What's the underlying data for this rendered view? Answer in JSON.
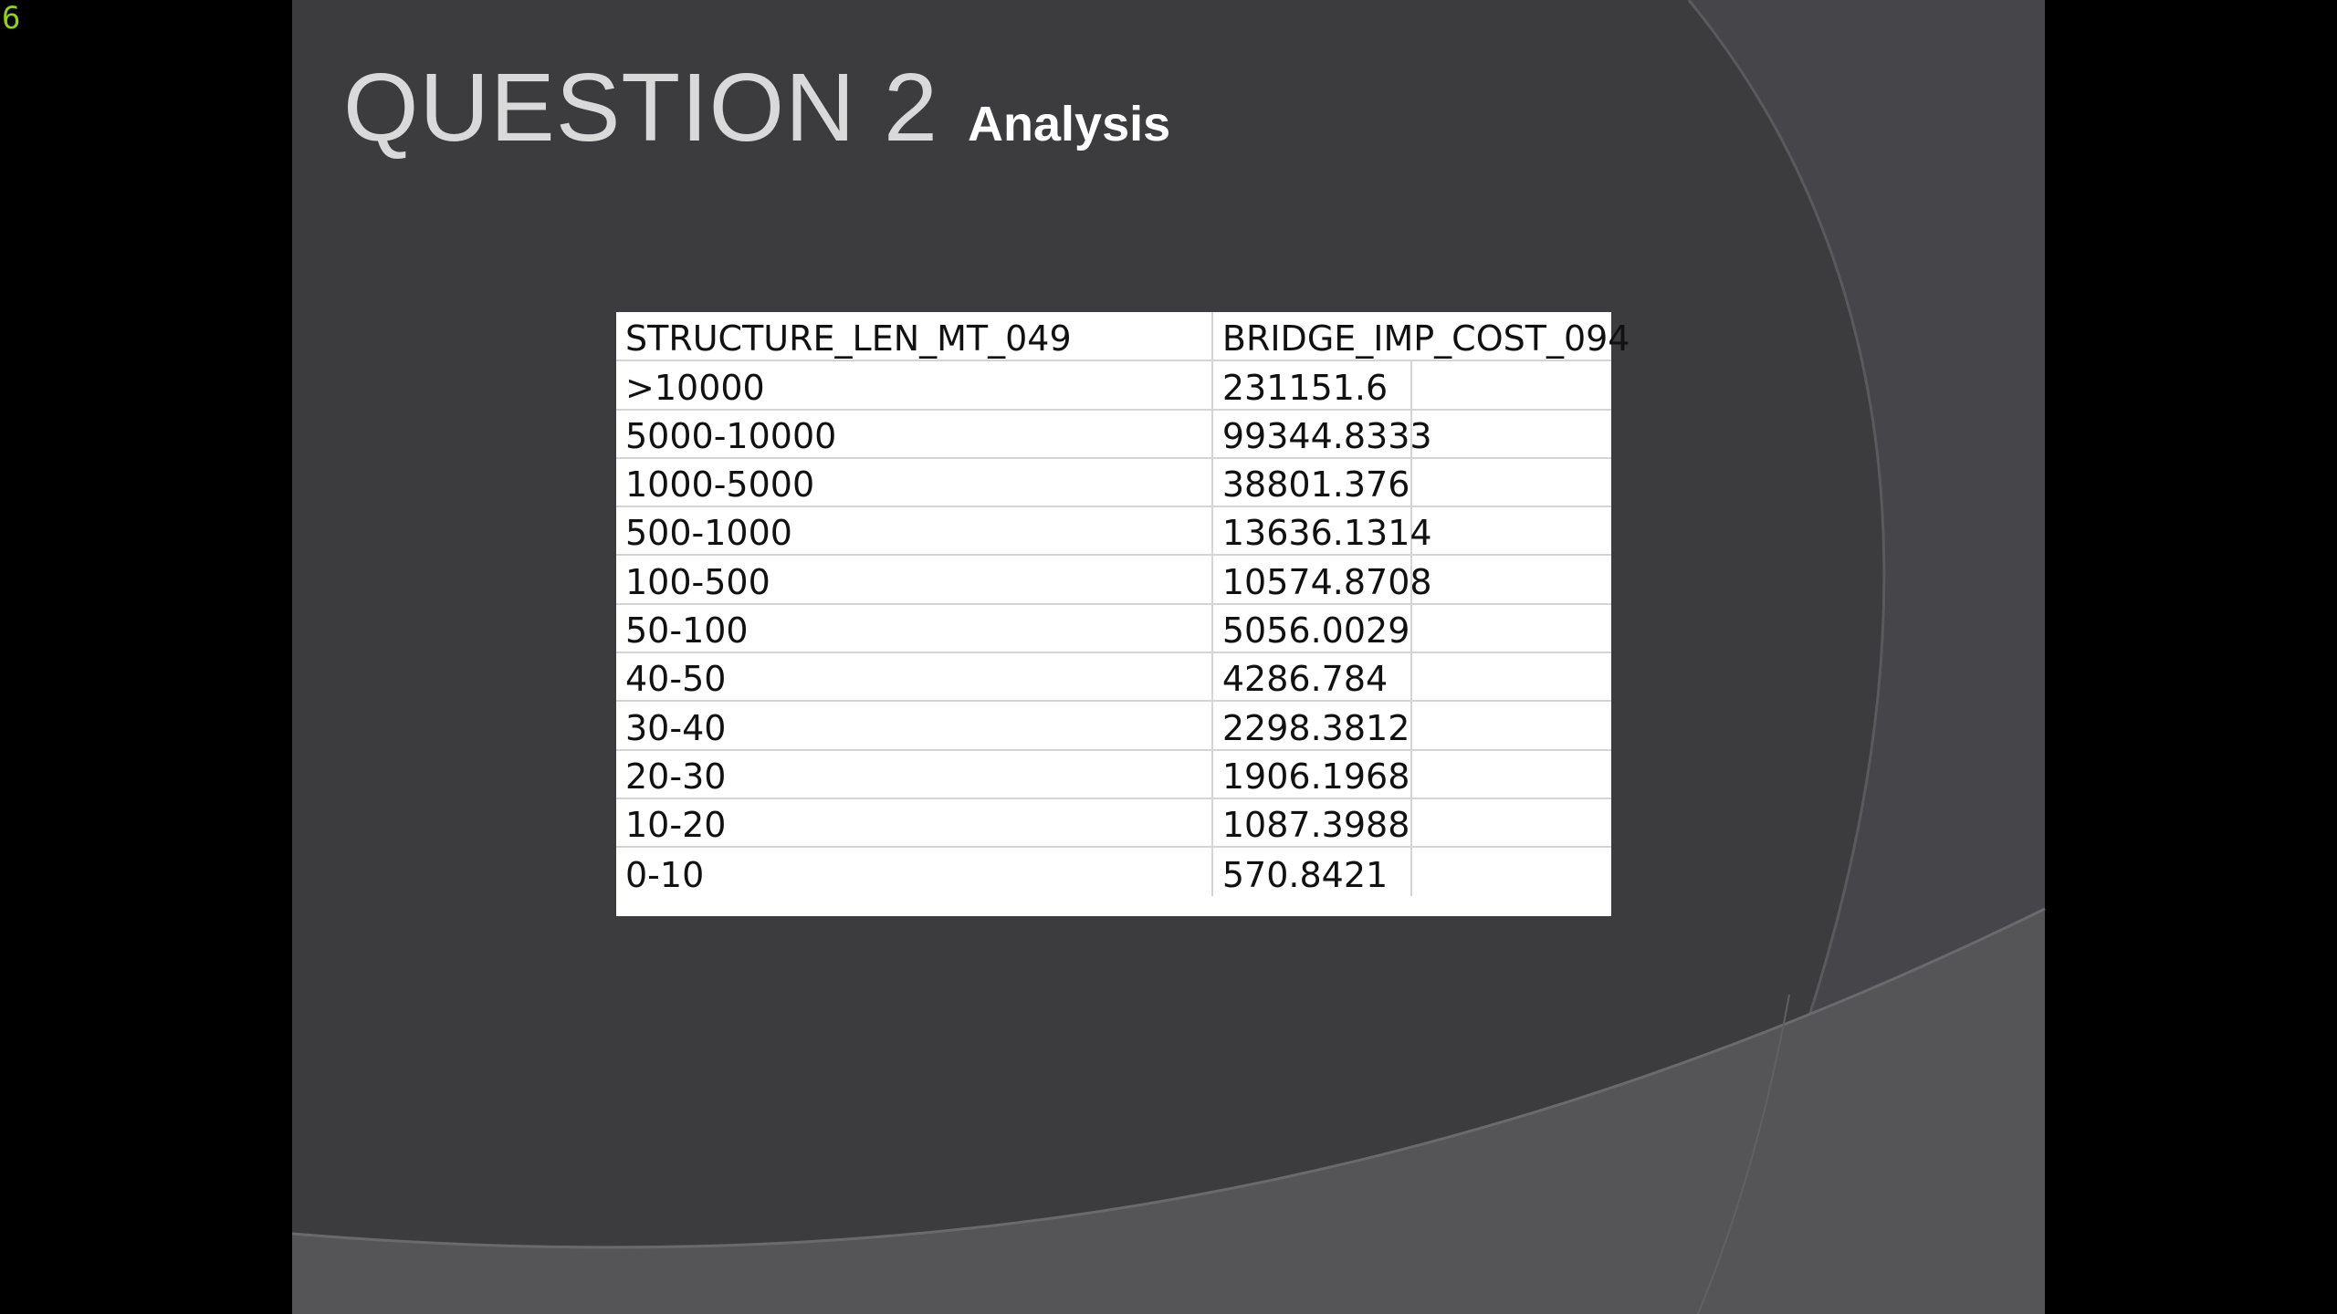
{
  "corner_indicator": "6",
  "slide": {
    "title": "QUESTION 2",
    "subtitle": "Analysis"
  },
  "table": {
    "columns": [
      "STRUCTURE_LEN_MT_049",
      "BRIDGE_IMP_COST_094"
    ],
    "rows": [
      [
        ">10000",
        "231151.6"
      ],
      [
        "5000-10000",
        "99344.8333"
      ],
      [
        "1000-5000",
        "38801.376"
      ],
      [
        "500-1000",
        "13636.1314"
      ],
      [
        "100-500",
        "10574.8708"
      ],
      [
        "50-100",
        "5056.0029"
      ],
      [
        "40-50",
        "4286.784"
      ],
      [
        "30-40",
        "2298.3812"
      ],
      [
        "20-30",
        "1906.1968"
      ],
      [
        "10-20",
        "1087.3988"
      ],
      [
        "0-10",
        "570.8421"
      ]
    ]
  },
  "colors": {
    "slide_background": "#3a3a3c",
    "title_text": "#d9d9d9",
    "subtitle_text": "#ffffff",
    "indicator": "#8fd11c"
  }
}
